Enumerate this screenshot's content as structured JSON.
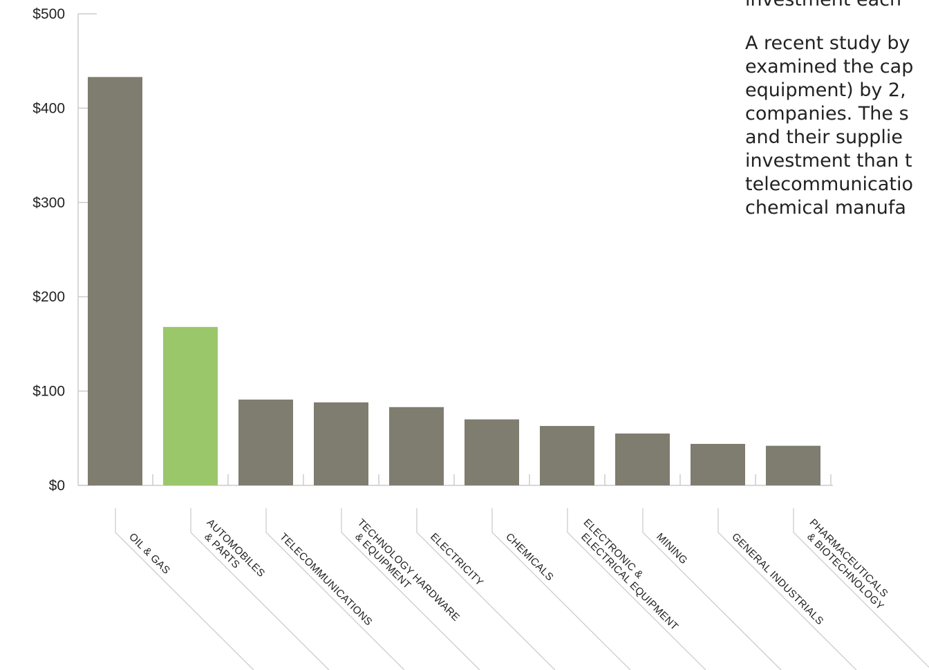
{
  "text": {
    "lead_line": "investment each",
    "paragraph_lines": [
      "A recent study by",
      "examined the cap",
      "equipment) by 2,",
      "companies. The s",
      "and their supplie",
      "investment than t",
      "telecommunicatio",
      "chemical manufa"
    ]
  },
  "chart_data": {
    "type": "bar",
    "title": "",
    "xlabel": "",
    "ylabel": "",
    "ylim": [
      0,
      500
    ],
    "y_ticks": [
      0,
      100,
      200,
      300,
      400,
      500
    ],
    "y_tick_labels": [
      "$0",
      "$100",
      "$200",
      "$300",
      "$400",
      "$500"
    ],
    "categories": [
      [
        "OIL & GAS"
      ],
      [
        "AUTOMOBILES",
        "& PARTS"
      ],
      [
        "TELECOMMUNICATIONS"
      ],
      [
        "TECHNOLOGY HARDWARE",
        "& EQUIPMENT"
      ],
      [
        "ELECTRICITY"
      ],
      [
        "CHEMICALS"
      ],
      [
        "ELECTRONIC &",
        "ELECTRICAL EQUIPMENT"
      ],
      [
        "MINING"
      ],
      [
        "GENERAL INDUSTRIALS"
      ],
      [
        "PHARMACEUTICALS",
        "& BIOTECHNOLOGY"
      ]
    ],
    "values": [
      433,
      168,
      91,
      88,
      83,
      70,
      63,
      55,
      44,
      42
    ],
    "highlight_index": 1,
    "colors": {
      "bar": "#7f7c70",
      "highlight": "#9bc76b",
      "axis": "#cccccc",
      "text": "#222222"
    },
    "grid": false
  }
}
